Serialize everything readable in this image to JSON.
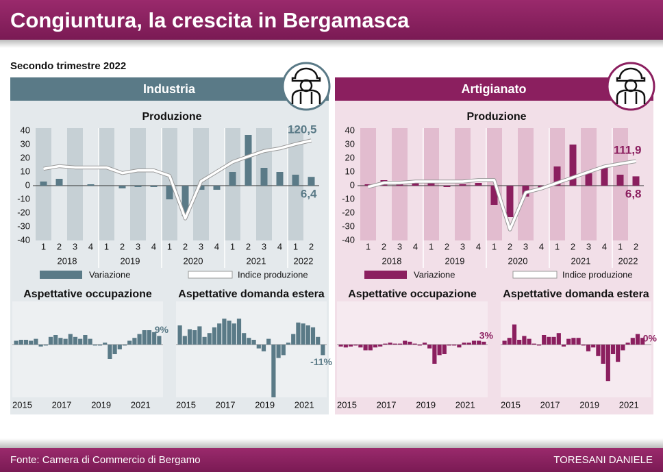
{
  "header": {
    "title": "Congiuntura, la crescita in Bergamasca",
    "subtitle": "Secondo trimestre 2022"
  },
  "panels": [
    {
      "title": "Industria",
      "color": "#5a7a87",
      "background": "#e4e9ec",
      "shade": "#c6d0d5"
    },
    {
      "title": "Artigianato",
      "color": "#8b1f5f",
      "background": "#f2dfe8",
      "shade": "#e2bccf"
    }
  ],
  "chart_data": [
    {
      "type": "bar-line",
      "title": "Produzione",
      "categories": [
        "1",
        "2",
        "3",
        "4",
        "1",
        "2",
        "3",
        "4",
        "1",
        "2",
        "3",
        "4",
        "1",
        "2",
        "3",
        "4",
        "1",
        "2"
      ],
      "groups": [
        "2018",
        "2019",
        "2020",
        "2021",
        "2022"
      ],
      "ylim": [
        -40,
        40
      ],
      "yticks": [
        -40,
        -30,
        -20,
        -10,
        0,
        10,
        20,
        30,
        40
      ],
      "y2lim": [
        76,
        124.8
      ],
      "series": [
        {
          "name": "Variazione",
          "type": "bar",
          "color": "#5a7a87",
          "values": [
            3,
            5,
            0,
            1,
            0,
            -2,
            -1,
            -1,
            -10,
            -22,
            -3,
            -3,
            10,
            37,
            13,
            10,
            8,
            6.4
          ],
          "value_labels": [
            null,
            null,
            null,
            null,
            null,
            null,
            null,
            null,
            null,
            null,
            null,
            null,
            null,
            null,
            null,
            null,
            null,
            "6,4"
          ]
        },
        {
          "name": "Indice produzione",
          "type": "line",
          "axis": "y2",
          "color": "#ffffff",
          "values": [
            107.9,
            109.1,
            108.5,
            108.5,
            108.5,
            106.0,
            107.2,
            107.2,
            104.8,
            85.8,
            102.3,
            106.6,
            110.9,
            113.4,
            115.8,
            117.0,
            118.9,
            120.5
          ],
          "value_labels": [
            null,
            null,
            null,
            null,
            null,
            null,
            null,
            null,
            null,
            null,
            null,
            null,
            null,
            null,
            null,
            null,
            null,
            "120,5"
          ]
        }
      ]
    },
    {
      "type": "small-bar",
      "title": "Aspettative occupazione",
      "color": "#5a7a87",
      "ylim": [
        -55,
        45
      ],
      "categories": [
        "2015",
        null,
        null,
        null,
        null,
        null,
        null,
        null,
        "2017",
        null,
        null,
        null,
        null,
        null,
        null,
        null,
        "2019",
        null,
        null,
        null,
        null,
        null,
        null,
        null,
        "2021",
        null,
        null,
        null,
        null,
        null
      ],
      "values": [
        4,
        5,
        5,
        4,
        6,
        -2,
        -1,
        8,
        10,
        7,
        6,
        11,
        8,
        6,
        10,
        6,
        -1,
        -1,
        2,
        -15,
        -10,
        -5,
        -1,
        4,
        7,
        11,
        15,
        15,
        13,
        9
      ],
      "value_labels": [
        null,
        null,
        null,
        null,
        null,
        null,
        null,
        null,
        null,
        null,
        null,
        null,
        null,
        null,
        null,
        null,
        null,
        null,
        null,
        null,
        null,
        null,
        null,
        null,
        null,
        null,
        null,
        null,
        null,
        "9%"
      ]
    },
    {
      "type": "small-bar",
      "title": "Aspettative domanda estera",
      "color": "#5a7a87",
      "ylim": [
        -55,
        45
      ],
      "categories": [
        "2015",
        null,
        null,
        null,
        null,
        null,
        null,
        null,
        "2017",
        null,
        null,
        null,
        null,
        null,
        null,
        null,
        "2019",
        null,
        null,
        null,
        null,
        null,
        null,
        null,
        "2021",
        null,
        null,
        null,
        null,
        null
      ],
      "values": [
        20,
        9,
        16,
        15,
        19,
        8,
        12,
        18,
        22,
        27,
        25,
        22,
        27,
        12,
        7,
        5,
        -4,
        -7,
        6,
        -55,
        -14,
        -11,
        2,
        11,
        23,
        22,
        20,
        18,
        8,
        -11
      ],
      "value_labels": [
        null,
        null,
        null,
        null,
        null,
        null,
        null,
        null,
        null,
        null,
        null,
        null,
        null,
        null,
        null,
        null,
        null,
        null,
        null,
        null,
        null,
        null,
        null,
        null,
        null,
        null,
        null,
        null,
        null,
        "-11%"
      ]
    },
    {
      "type": "bar-line",
      "title": "Produzione",
      "categories": [
        "1",
        "2",
        "3",
        "4",
        "1",
        "2",
        "3",
        "4",
        "1",
        "2",
        "3",
        "4",
        "1",
        "2",
        "3",
        "4",
        "1",
        "2"
      ],
      "groups": [
        "2018",
        "2019",
        "2020",
        "2021",
        "2022"
      ],
      "ylim": [
        -40,
        40
      ],
      "yticks": [
        -40,
        -30,
        -20,
        -10,
        0,
        10,
        20,
        30,
        40
      ],
      "y2lim": [
        75,
        126
      ],
      "series": [
        {
          "name": "Variazione",
          "type": "bar",
          "color": "#8b1f5f",
          "values": [
            1,
            4,
            1,
            4,
            3,
            -1,
            1,
            2,
            -14,
            -23,
            -8,
            -2,
            14,
            30,
            9,
            14,
            8,
            6.8
          ],
          "value_labels": [
            null,
            null,
            null,
            null,
            null,
            null,
            null,
            null,
            null,
            null,
            null,
            null,
            null,
            null,
            null,
            null,
            null,
            "6,8"
          ]
        },
        {
          "name": "Indice produzione",
          "type": "line",
          "axis": "y2",
          "color": "#ffffff",
          "values": [
            99.9,
            101.8,
            101.8,
            102.4,
            102.4,
            102.4,
            102.4,
            103.1,
            103.1,
            80.1,
            97.3,
            99.2,
            101.8,
            104.3,
            106.9,
            109.4,
            110.7,
            111.9
          ],
          "value_labels": [
            null,
            null,
            null,
            null,
            null,
            null,
            null,
            null,
            null,
            null,
            null,
            null,
            null,
            null,
            null,
            null,
            null,
            "111,9"
          ]
        }
      ]
    },
    {
      "type": "small-bar",
      "title": "Aspettative occupazione",
      "color": "#8b1f5f",
      "ylim": [
        -55,
        45
      ],
      "categories": [
        "2015",
        null,
        null,
        null,
        null,
        null,
        null,
        null,
        "2017",
        null,
        null,
        null,
        null,
        null,
        null,
        null,
        "2019",
        null,
        null,
        null,
        null,
        null,
        null,
        null,
        "2021",
        null,
        null,
        null,
        null,
        null
      ],
      "values": [
        -2,
        -3,
        -2,
        -1,
        -3,
        -6,
        -6,
        -3,
        -2,
        1,
        2,
        1,
        1,
        4,
        3,
        1,
        -1,
        2,
        -4,
        -20,
        -11,
        -10,
        -1,
        -1,
        -3,
        2,
        2,
        4,
        4,
        3
      ],
      "value_labels": [
        null,
        null,
        null,
        null,
        null,
        null,
        null,
        null,
        null,
        null,
        null,
        null,
        null,
        null,
        null,
        null,
        null,
        null,
        null,
        null,
        null,
        null,
        null,
        null,
        null,
        null,
        null,
        null,
        null,
        "3%"
      ]
    },
    {
      "type": "small-bar",
      "title": "Aspettative domanda estera",
      "color": "#8b1f5f",
      "ylim": [
        -55,
        45
      ],
      "categories": [
        "2015",
        null,
        null,
        null,
        null,
        null,
        null,
        null,
        "2017",
        null,
        null,
        null,
        null,
        null,
        null,
        null,
        "2019",
        null,
        null,
        null,
        null,
        null,
        null,
        null,
        "2021",
        null,
        null,
        null,
        null,
        null
      ],
      "values": [
        4,
        7,
        21,
        5,
        9,
        6,
        1,
        -1,
        10,
        8,
        8,
        12,
        -2,
        6,
        7,
        7,
        -1,
        -7,
        -3,
        -12,
        -20,
        -38,
        -10,
        -18,
        -6,
        2,
        7,
        11,
        7,
        0
      ],
      "value_labels": [
        null,
        null,
        null,
        null,
        null,
        null,
        null,
        null,
        null,
        null,
        null,
        null,
        null,
        null,
        null,
        null,
        null,
        null,
        null,
        null,
        null,
        null,
        null,
        null,
        null,
        null,
        null,
        null,
        null,
        "0%"
      ]
    }
  ],
  "footer": {
    "source": "Fonte: Camera di Commercio di Bergamo",
    "credit": "TORESANI DANIELE"
  }
}
